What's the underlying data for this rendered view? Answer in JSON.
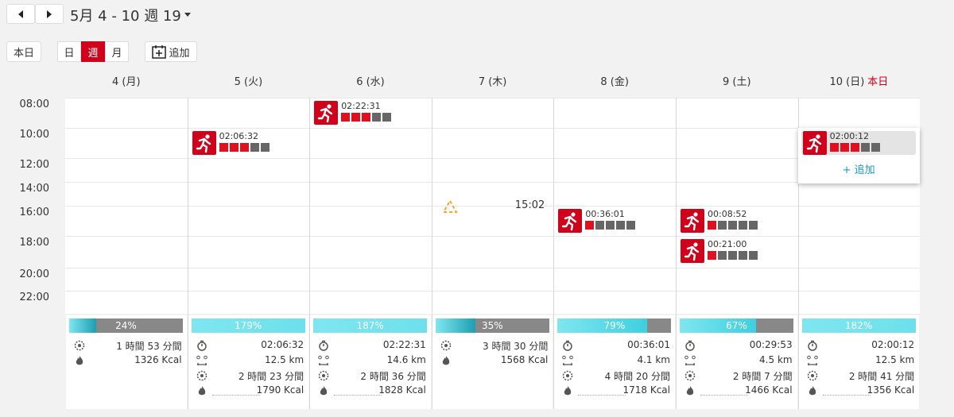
{
  "header": {
    "range": "5月 4 - 10 週 19",
    "today": "本日",
    "views": [
      "日",
      "週",
      "月"
    ],
    "add": "追加"
  },
  "times": [
    "08:00",
    "10:00",
    "12:00",
    "14:00",
    "16:00",
    "18:00",
    "20:00",
    "22:00"
  ],
  "days": [
    {
      "label": "4 (月)",
      "percent": {
        "value": 24,
        "label": "24%"
      },
      "bar_color": "#1e9fb0",
      "stats": {
        "sleep": "1 時間 53 分間",
        "calories": "1326 Kcal"
      }
    },
    {
      "label": "5 (火)",
      "percent": {
        "value": 179,
        "label": "179%"
      },
      "bar_color": "#5fdbe8",
      "stats": {
        "time": "02:06:32",
        "distance": "12.5 km",
        "sleep": "2 時間 23 分間",
        "calories": "1790 Kcal"
      }
    },
    {
      "label": "6 (水)",
      "percent": {
        "value": 187,
        "label": "187%"
      },
      "bar_color": "#5fdbe8",
      "stats": {
        "time": "02:22:31",
        "distance": "14.6 km",
        "sleep": "2 時間 36 分間",
        "calories": "1828 Kcal"
      }
    },
    {
      "label": "7 (木)",
      "percent": {
        "value": 35,
        "label": "35%"
      },
      "bar_color": "#1e9fb0",
      "stats": {
        "sleep": "3 時間 30 分間",
        "calories": "1568 Kcal"
      }
    },
    {
      "label": "8 (金)",
      "percent": {
        "value": 79,
        "label": "79%"
      },
      "bar_color": "#3fcfdf",
      "stats": {
        "time": "00:36:01",
        "distance": "4.1 km",
        "sleep": "4 時間 20 分間",
        "calories": "1718 Kcal"
      }
    },
    {
      "label": "9 (土)",
      "percent": {
        "value": 67,
        "label": "67%"
      },
      "bar_color": "#3fcfdf",
      "stats": {
        "time": "00:29:53",
        "distance": "4.5 km",
        "sleep": "2 時間 7 分間",
        "calories": "1466 Kcal"
      }
    },
    {
      "label": "10 (日)",
      "tag": "本日",
      "percent": {
        "value": 182,
        "label": "182%"
      },
      "bar_color": "#5fdbe8",
      "stats": {
        "time": "02:00:12",
        "distance": "12.5 km",
        "sleep": "2 時間 41 分間",
        "calories": "1356 Kcal"
      }
    }
  ],
  "events": [
    {
      "day": 2,
      "row": 0,
      "duration": "02:22:31",
      "intensity": 3
    },
    {
      "day": 1,
      "row": 1,
      "duration": "02:06:32",
      "intensity": 3
    },
    {
      "day": 6,
      "row": 1,
      "duration": "02:00:12",
      "intensity": 3
    },
    {
      "day": 4,
      "row": 4,
      "duration": "00:36:01",
      "intensity": 1
    },
    {
      "day": 5,
      "row": 4,
      "duration": "00:08:52",
      "intensity": 1
    },
    {
      "day": 5,
      "row": 5,
      "duration": "00:21:00",
      "intensity": 1
    }
  ],
  "marker": {
    "day": 3,
    "time": "15:02"
  },
  "popup_add": "+ 追加"
}
